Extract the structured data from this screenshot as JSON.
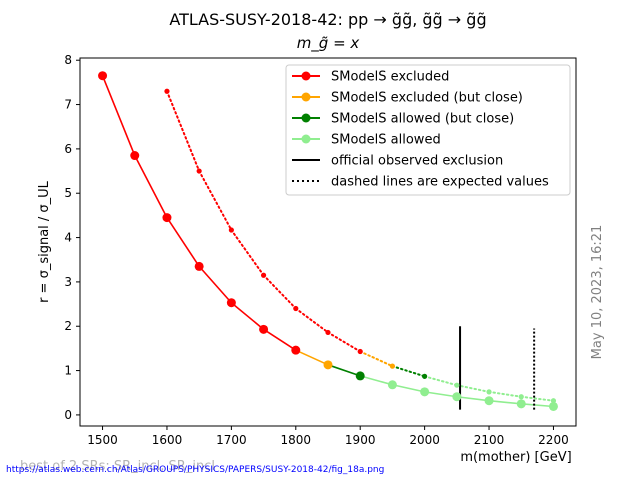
{
  "chart_data": {
    "type": "line",
    "title_line1": "ATLAS-SUSY-2018-42: pp → g̃g̃, g̃g̃ → g̃g̃",
    "title_line2": "m_g̃ = x",
    "xlabel": "m(mother) [GeV]",
    "ylabel": "r = σ_signal / σ_UL",
    "xlim": [
      1465,
      2235
    ],
    "ylim": [
      -0.25,
      8.05
    ],
    "xticks": [
      1500,
      1600,
      1700,
      1800,
      1900,
      2000,
      2100,
      2200
    ],
    "yticks": [
      0,
      1,
      2,
      3,
      4,
      5,
      6,
      7,
      8
    ],
    "grid": false,
    "legend_position": "top-right",
    "legend": [
      {
        "label": "SModelS excluded",
        "color": "#ff0000",
        "style": "line-marker"
      },
      {
        "label": "SModelS excluded (but close)",
        "color": "#ffa500",
        "style": "line-marker"
      },
      {
        "label": "SModelS allowed (but close)",
        "color": "#008000",
        "style": "line-marker"
      },
      {
        "label": "SModelS allowed",
        "color": "#90ee90",
        "style": "line-marker"
      },
      {
        "label": "official observed exclusion",
        "color": "#000000",
        "style": "solid"
      },
      {
        "label": "dashed lines are expected values",
        "color": "#000000",
        "style": "dotted"
      }
    ],
    "observed": {
      "x": [
        1500,
        1550,
        1600,
        1650,
        1700,
        1750,
        1800,
        1850,
        1900,
        1950,
        2000,
        2050,
        2100,
        2150,
        2200
      ],
      "r": [
        7.65,
        5.85,
        4.45,
        3.35,
        2.53,
        1.93,
        1.46,
        1.13,
        0.88,
        0.68,
        0.52,
        0.41,
        0.32,
        0.25,
        0.19
      ],
      "status": [
        "excluded",
        "excluded",
        "excluded",
        "excluded",
        "excluded",
        "excluded",
        "excluded",
        "close_excluded",
        "close_allowed",
        "allowed",
        "allowed",
        "allowed",
        "allowed",
        "allowed",
        "allowed"
      ]
    },
    "expected": {
      "x": [
        1600,
        1650,
        1700,
        1750,
        1800,
        1850,
        1900,
        1950,
        2000,
        2050,
        2100,
        2150,
        2200
      ],
      "r": [
        7.3,
        5.5,
        4.17,
        3.15,
        2.4,
        1.86,
        1.43,
        1.1,
        0.87,
        0.67,
        0.52,
        0.41,
        0.32
      ],
      "status": [
        "excluded",
        "excluded",
        "excluded",
        "excluded",
        "excluded",
        "excluded",
        "excluded",
        "close_excluded",
        "close_allowed",
        "allowed",
        "allowed",
        "allowed",
        "allowed"
      ]
    },
    "official_observed_exclusion_x": 2055,
    "official_expected_exclusion_x": 2170,
    "exclusion_line_yrange": [
      0.12,
      2.0
    ],
    "status_colors": {
      "excluded": "#ff0000",
      "close_excluded": "#ffa500",
      "close_allowed": "#008000",
      "allowed": "#90ee90"
    }
  },
  "timestamp": "May 10, 2023, 16:21",
  "footer_note": "best of 2 SRs: SR_incl, SR_incl",
  "source_url": "https://atlas.web.cern.ch/Atlas/GROUPS/PHYSICS/PAPERS/SUSY-2018-42/fig_18a.png"
}
